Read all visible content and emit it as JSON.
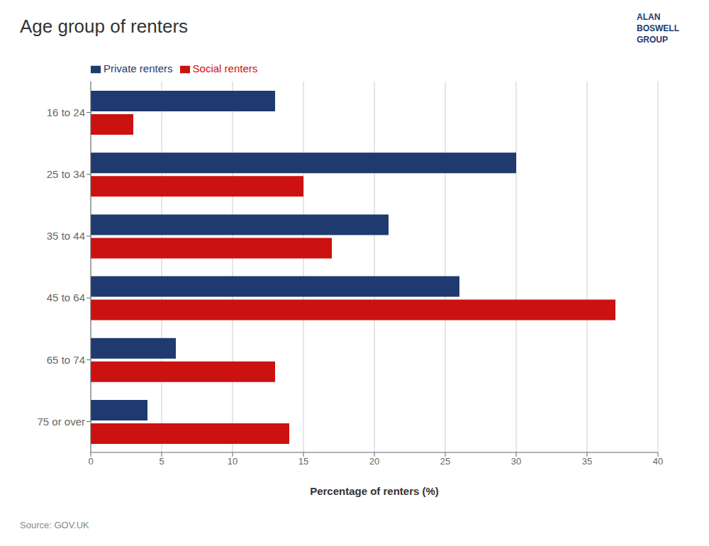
{
  "chart_data": {
    "type": "bar",
    "orientation": "horizontal",
    "title": "Age group of renters",
    "xlabel": "Percentage of renters (%)",
    "categories": [
      "16 to 24",
      "25 to 34",
      "35 to 44",
      "45 to 64",
      "65 to 74",
      "75 or over"
    ],
    "series": [
      {
        "name": "Private renters",
        "color": "#1e3a6e",
        "values": [
          13,
          30,
          21,
          26,
          6,
          4
        ]
      },
      {
        "name": "Social renters",
        "color": "#cc1111",
        "values": [
          3,
          15,
          17,
          37,
          13,
          14
        ]
      }
    ],
    "xlim": [
      0,
      40
    ],
    "xticks": [
      0,
      5,
      10,
      15,
      20,
      25,
      30,
      35,
      40
    ],
    "grid": true,
    "legend": "top",
    "annotations": [
      "Source: GOV.UK",
      "ALAN",
      "BOSWELL",
      "GROUP"
    ]
  }
}
